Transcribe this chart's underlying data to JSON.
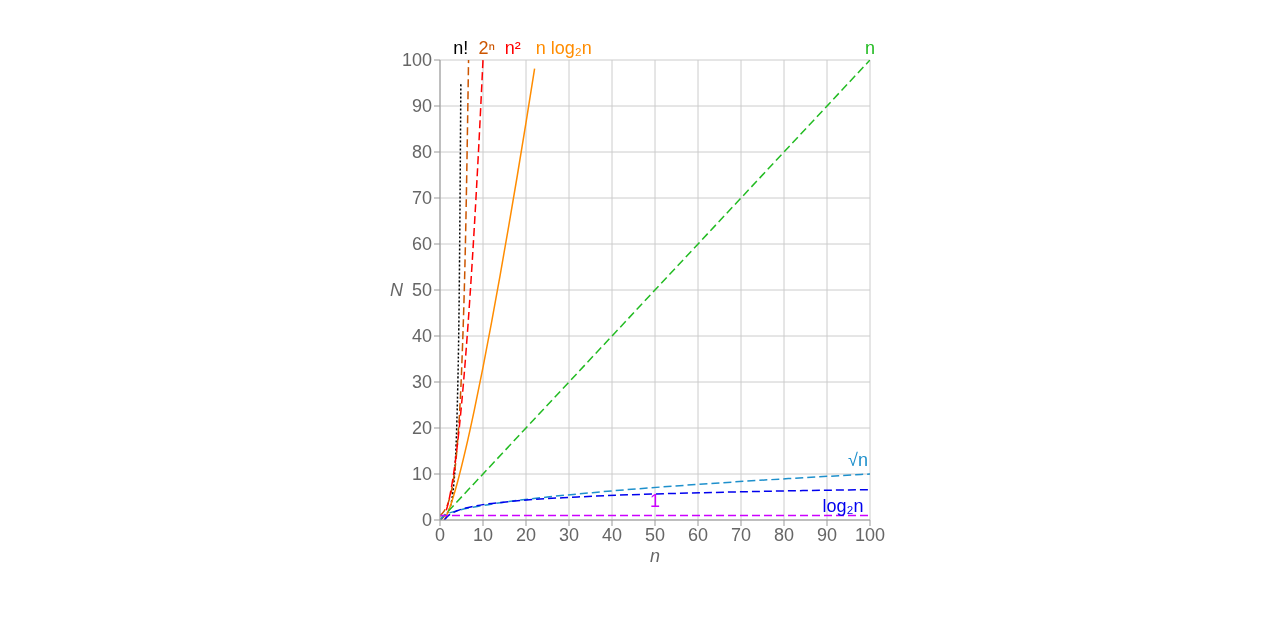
{
  "chart_data": {
    "type": "line",
    "xlabel": "n",
    "ylabel": "N",
    "xlim": [
      0,
      100
    ],
    "xticks": [
      0,
      10,
      20,
      30,
      40,
      50,
      60,
      70,
      80,
      90,
      100
    ],
    "ylim": [
      0,
      100
    ],
    "yticks": [
      0,
      10,
      20,
      30,
      40,
      50,
      60,
      70,
      80,
      90,
      100
    ],
    "grid": true,
    "marker": "none",
    "series": [
      {
        "name": "n!",
        "color": "#000000",
        "line_style": "dotted",
        "x": [
          0,
          1,
          2,
          3,
          4,
          4.5,
          4.85
        ],
        "values": [
          1,
          1,
          2,
          6,
          24,
          52,
          95
        ]
      },
      {
        "name": "2ⁿ",
        "color": "#cc5500",
        "line_style": "dashed",
        "x": [
          0,
          1,
          2,
          3,
          4,
          5,
          6,
          6.64
        ],
        "values": [
          1,
          2,
          4,
          8,
          16,
          32,
          64,
          100
        ]
      },
      {
        "name": "n²",
        "color": "#ff0000",
        "line_style": "dashed",
        "x": [
          0,
          1,
          2,
          3,
          4,
          5,
          6,
          7,
          8,
          9,
          10
        ],
        "values": [
          0,
          1,
          4,
          9,
          16,
          25,
          36,
          49,
          64,
          81,
          100
        ]
      },
      {
        "name": "n log₂n",
        "color": "#ff8c00",
        "line_style": "solid",
        "x": [
          1,
          2,
          4,
          6,
          8,
          10,
          12,
          14,
          16,
          18,
          20,
          22
        ],
        "values": [
          0,
          2,
          8,
          15.5,
          24,
          33.2,
          43,
          53.3,
          64,
          75,
          86.4,
          98.1
        ]
      },
      {
        "name": "n",
        "color": "#22bb22",
        "line_style": "dashed",
        "x": [
          0,
          100
        ],
        "values": [
          0,
          100
        ]
      },
      {
        "name": "√n",
        "color": "#1e90cc",
        "line_style": "dashed",
        "x": [
          0,
          1,
          4,
          9,
          16,
          25,
          36,
          49,
          64,
          81,
          100
        ],
        "values": [
          0,
          1,
          2,
          3,
          4,
          5,
          6,
          7,
          8,
          9,
          10
        ]
      },
      {
        "name": "log₂n",
        "color": "#0000ee",
        "line_style": "dashed",
        "x": [
          1,
          2,
          4,
          8,
          16,
          32,
          64,
          100
        ],
        "values": [
          0,
          1,
          2,
          3,
          4,
          5,
          6,
          6.6
        ]
      },
      {
        "name": "1",
        "color": "#cc00ff",
        "line_style": "dashed",
        "x": [
          0,
          100
        ],
        "values": [
          1,
          1
        ]
      }
    ]
  }
}
